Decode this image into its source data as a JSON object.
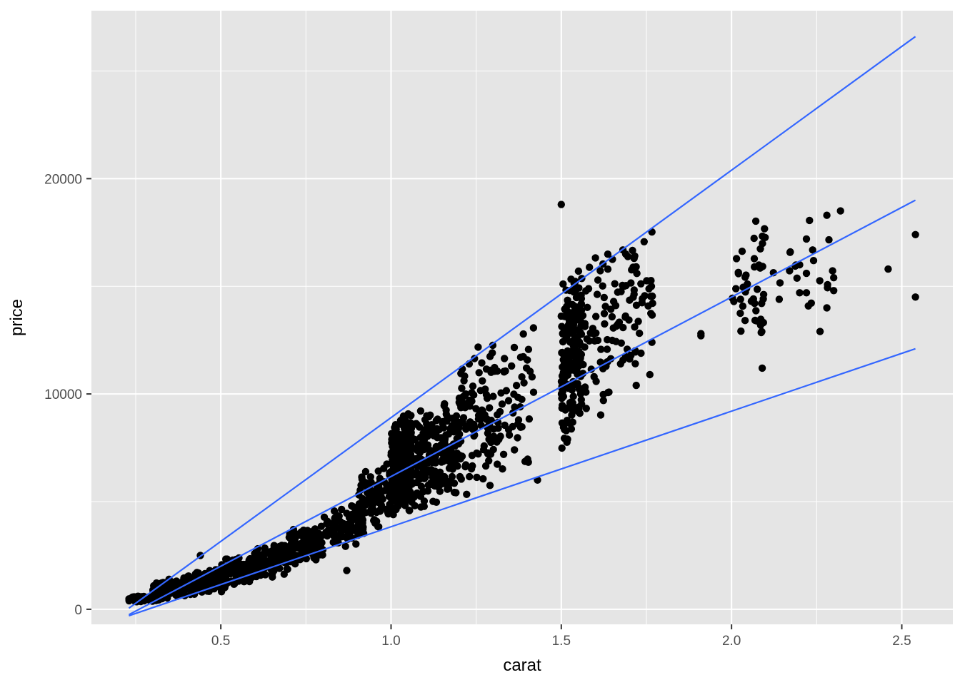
{
  "colors": {
    "panel": "#E5E5E5",
    "grid": "#FFFFFF",
    "points": "#000000",
    "fit_lines": "#3366FF",
    "tick_text": "#4D4D4D"
  },
  "chart_data": {
    "type": "scatter",
    "title": "",
    "xlabel": "carat",
    "ylabel": "price",
    "xlim": [
      0.12,
      2.65
    ],
    "ylim": [
      -700,
      27800
    ],
    "x_ticks": [
      0.5,
      1.0,
      1.5,
      2.0,
      2.5
    ],
    "x_tick_labels": [
      "0.5",
      "1.0",
      "1.5",
      "2.0",
      "2.5"
    ],
    "y_ticks": [
      0,
      10000,
      20000
    ],
    "y_tick_labels": [
      "0",
      "10000",
      "20000"
    ],
    "grid": true,
    "legend": "none",
    "fit_lines": [
      {
        "x": [
          0.23,
          2.54
        ],
        "y": [
          50,
          26600
        ]
      },
      {
        "x": [
          0.23,
          2.54
        ],
        "y": [
          -250,
          19000
        ]
      },
      {
        "x": [
          0.23,
          2.54
        ],
        "y": [
          -300,
          12100
        ]
      }
    ],
    "clusters": [
      {
        "x": [
          0.23,
          0.32
        ],
        "y": [
          300,
          700
        ],
        "n": 120
      },
      {
        "x": [
          0.3,
          0.4
        ],
        "y": [
          400,
          1500
        ],
        "n": 150
      },
      {
        "x": [
          0.4,
          0.52
        ],
        "y": [
          600,
          2000
        ],
        "n": 150
      },
      {
        "x": [
          0.5,
          0.62
        ],
        "y": [
          1000,
          2700
        ],
        "n": 140
      },
      {
        "x": [
          0.6,
          0.7
        ],
        "y": [
          1300,
          3200
        ],
        "n": 100
      },
      {
        "x": [
          0.7,
          0.8
        ],
        "y": [
          2000,
          4000
        ],
        "n": 130
      },
      {
        "x": [
          0.8,
          0.92
        ],
        "y": [
          2500,
          5000
        ],
        "n": 90
      },
      {
        "x": [
          0.9,
          1.0
        ],
        "y": [
          3300,
          7000
        ],
        "n": 90
      },
      {
        "x": [
          1.0,
          1.06
        ],
        "y": [
          4000,
          9500
        ],
        "n": 350
      },
      {
        "x": [
          1.05,
          1.2
        ],
        "y": [
          4000,
          10300
        ],
        "n": 220
      },
      {
        "x": [
          1.2,
          1.3
        ],
        "y": [
          4200,
          13200
        ],
        "n": 100
      },
      {
        "x": [
          1.3,
          1.42
        ],
        "y": [
          4500,
          14800
        ],
        "n": 60
      },
      {
        "x": [
          1.5,
          1.56
        ],
        "y": [
          6500,
          17000
        ],
        "n": 200
      },
      {
        "x": [
          1.56,
          1.7
        ],
        "y": [
          8000,
          17500
        ],
        "n": 80
      },
      {
        "x": [
          1.7,
          1.77
        ],
        "y": [
          10500,
          18500
        ],
        "n": 40
      },
      {
        "x": [
          2.0,
          2.1
        ],
        "y": [
          11500,
          18800
        ],
        "n": 45
      },
      {
        "x": [
          2.1,
          2.3
        ],
        "y": [
          13000,
          18500
        ],
        "n": 18
      }
    ],
    "outliers": [
      {
        "x": 0.44,
        "y": 2500
      },
      {
        "x": 0.87,
        "y": 1800
      },
      {
        "x": 1.5,
        "y": 18800
      },
      {
        "x": 1.43,
        "y": 6000
      },
      {
        "x": 1.91,
        "y": 12700
      },
      {
        "x": 1.91,
        "y": 12800
      },
      {
        "x": 2.46,
        "y": 15800
      },
      {
        "x": 2.54,
        "y": 17400
      },
      {
        "x": 2.54,
        "y": 14500
      },
      {
        "x": 2.32,
        "y": 18500
      },
      {
        "x": 2.28,
        "y": 18300
      },
      {
        "x": 2.3,
        "y": 15400
      },
      {
        "x": 2.3,
        "y": 14800
      },
      {
        "x": 2.28,
        "y": 14000
      },
      {
        "x": 2.26,
        "y": 12900
      },
      {
        "x": 2.14,
        "y": 14400
      },
      {
        "x": 2.09,
        "y": 11200
      },
      {
        "x": 2.2,
        "y": 16000
      },
      {
        "x": 2.22,
        "y": 17200
      },
      {
        "x": 2.2,
        "y": 14700
      },
      {
        "x": 2.22,
        "y": 14700
      },
      {
        "x": 2.22,
        "y": 15600
      },
      {
        "x": 1.76,
        "y": 10900
      },
      {
        "x": 1.72,
        "y": 10400
      }
    ]
  }
}
